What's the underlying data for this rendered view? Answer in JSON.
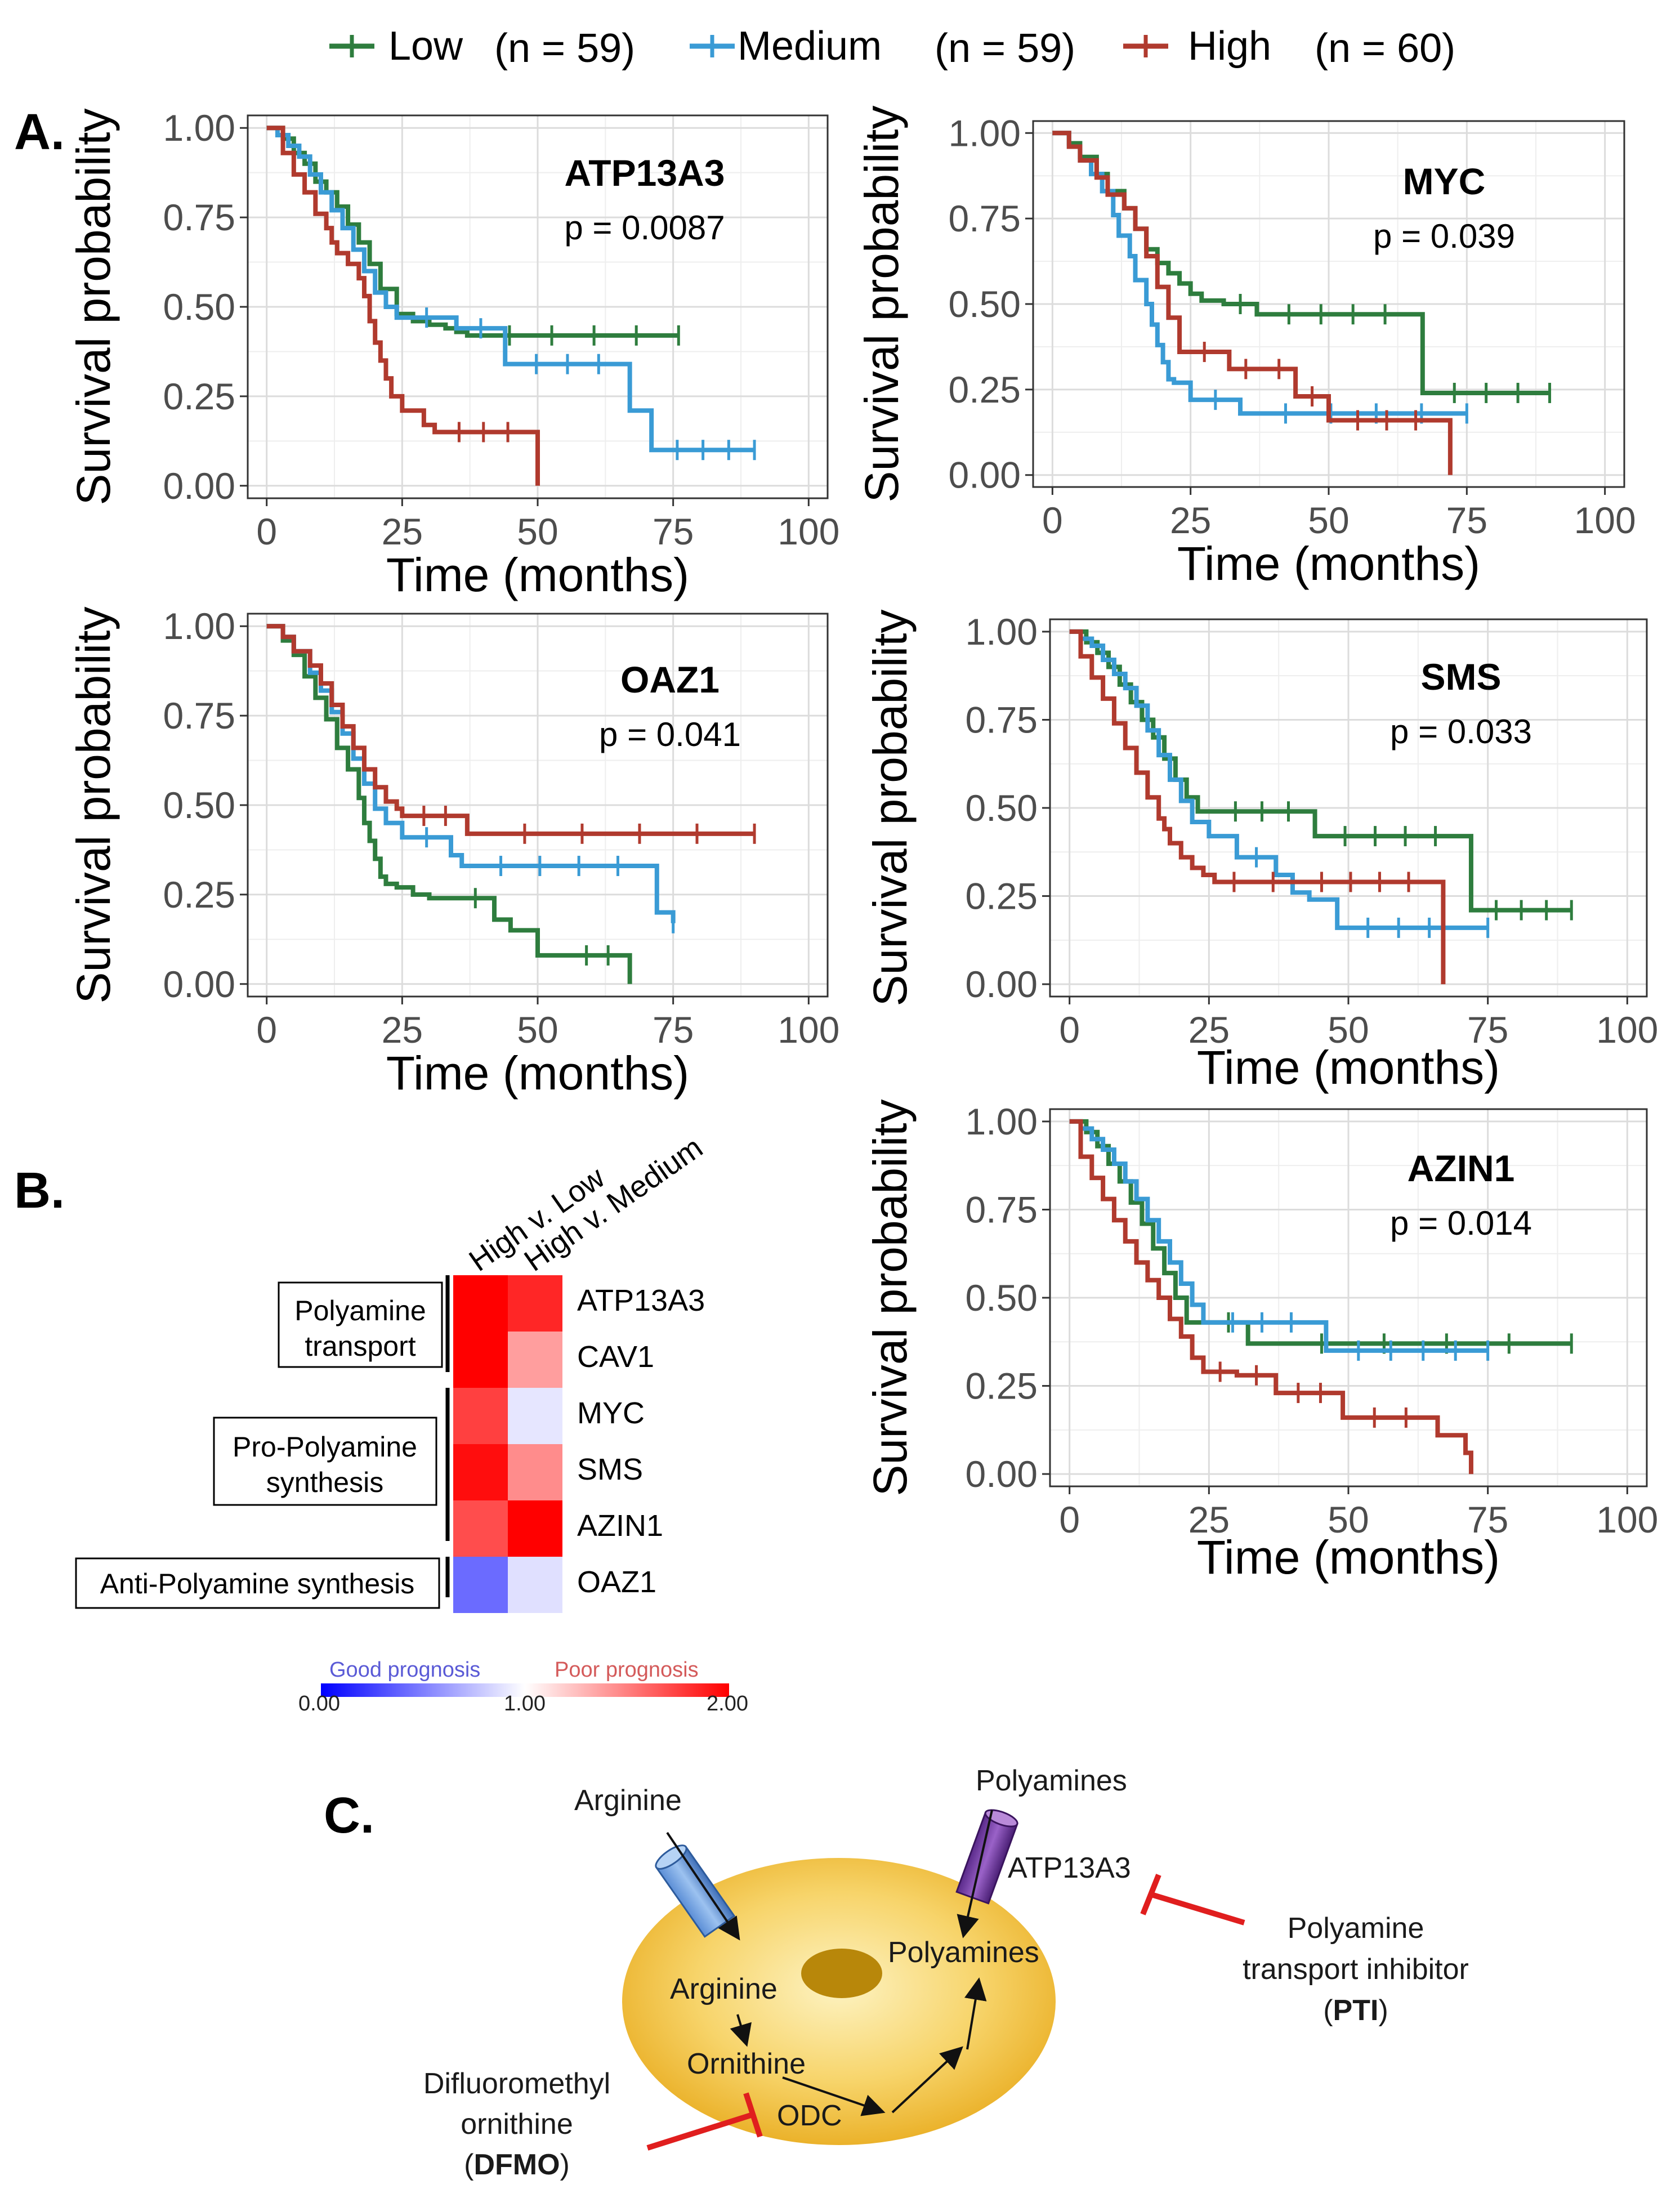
{
  "colors": {
    "low": "#2e7d3e",
    "medium": "#3a9bd5",
    "high": "#b03a2e"
  },
  "legend": {
    "items": [
      {
        "key": "low",
        "label": "Low",
        "n_text": "(n = 59)"
      },
      {
        "key": "medium",
        "label": "Medium",
        "n_text": "(n = 59)"
      },
      {
        "key": "high",
        "label": "High",
        "n_text": "(n = 60)"
      }
    ]
  },
  "panel_letters": {
    "a": "A.",
    "b": "B.",
    "c": "C."
  },
  "chart_data": [
    {
      "type": "line",
      "subtype": "kaplan-meier",
      "title": "ATP13A3",
      "p_value": "p = 0.0087",
      "xlabel": "Time (months)",
      "ylabel": "Survival probability",
      "xlim": [
        0,
        100
      ],
      "ylim": [
        0,
        1
      ],
      "xticks": [
        "0",
        "25",
        "50",
        "75",
        "100"
      ],
      "yticks": [
        "0.00",
        "0.25",
        "0.50",
        "0.75",
        "1.00"
      ],
      "series": [
        {
          "name": "Low",
          "x": [
            0,
            3,
            5,
            7,
            9,
            11,
            13,
            15,
            17,
            19,
            21,
            24,
            27,
            30,
            33,
            35,
            37,
            76
          ],
          "y": [
            1,
            0.97,
            0.93,
            0.9,
            0.85,
            0.82,
            0.78,
            0.73,
            0.68,
            0.62,
            0.55,
            0.48,
            0.46,
            0.45,
            0.44,
            0.43,
            0.42,
            0.42
          ]
        },
        {
          "name": "Medium",
          "x": [
            0,
            2,
            4,
            6,
            8,
            10,
            12,
            14,
            16,
            18,
            20,
            22,
            24,
            35,
            44,
            67,
            71,
            90
          ],
          "y": [
            1,
            0.98,
            0.95,
            0.92,
            0.87,
            0.82,
            0.77,
            0.72,
            0.66,
            0.6,
            0.54,
            0.5,
            0.47,
            0.44,
            0.34,
            0.21,
            0.1,
            0.1
          ]
        },
        {
          "name": "High",
          "x": [
            0,
            3,
            5,
            7,
            9,
            11,
            12,
            13,
            15,
            17,
            18,
            19,
            20,
            21,
            22,
            23,
            25,
            29,
            31,
            49,
            50
          ],
          "y": [
            1,
            0.93,
            0.87,
            0.82,
            0.76,
            0.72,
            0.68,
            0.65,
            0.62,
            0.58,
            0.53,
            0.46,
            0.4,
            0.35,
            0.3,
            0.25,
            0.21,
            0.17,
            0.15,
            0.15,
            0
          ]
        }
      ]
    },
    {
      "type": "line",
      "subtype": "kaplan-meier",
      "title": "MYC",
      "p_value": "p = 0.039",
      "xlabel": "Time (months)",
      "ylabel": "Survival probability",
      "xlim": [
        0,
        100
      ],
      "ylim": [
        0,
        1
      ],
      "xticks": [
        "0",
        "25",
        "50",
        "75",
        "100"
      ],
      "yticks": [
        "0.00",
        "0.25",
        "0.50",
        "0.75",
        "1.00"
      ],
      "series": [
        {
          "name": "Low",
          "x": [
            0,
            3,
            5,
            8,
            10,
            13,
            15,
            17,
            19,
            21,
            23,
            25,
            27,
            31,
            37,
            66,
            67,
            90
          ],
          "y": [
            1,
            0.97,
            0.93,
            0.88,
            0.83,
            0.78,
            0.72,
            0.66,
            0.62,
            0.59,
            0.56,
            0.53,
            0.51,
            0.5,
            0.47,
            0.47,
            0.24,
            0.24
          ]
        },
        {
          "name": "Medium",
          "x": [
            0,
            3,
            5,
            7,
            9,
            11,
            12,
            14,
            15,
            17,
            18,
            19,
            20,
            21,
            22,
            25,
            34,
            75
          ],
          "y": [
            1,
            0.96,
            0.92,
            0.88,
            0.83,
            0.76,
            0.7,
            0.64,
            0.57,
            0.5,
            0.44,
            0.38,
            0.33,
            0.28,
            0.27,
            0.22,
            0.18,
            0.18
          ]
        },
        {
          "name": "High",
          "x": [
            0,
            3,
            5,
            8,
            10,
            13,
            15,
            17,
            19,
            21,
            23,
            32,
            38,
            44,
            50,
            71,
            72
          ],
          "y": [
            1,
            0.96,
            0.92,
            0.87,
            0.82,
            0.78,
            0.72,
            0.64,
            0.55,
            0.46,
            0.36,
            0.31,
            0.31,
            0.23,
            0.16,
            0.16,
            0
          ]
        }
      ]
    },
    {
      "type": "line",
      "subtype": "kaplan-meier",
      "title": "OAZ1",
      "p_value": "p = 0.041",
      "xlabel": "Time (months)",
      "ylabel": "Survival probability",
      "xlim": [
        0,
        100
      ],
      "ylim": [
        0,
        1
      ],
      "xticks": [
        "0",
        "25",
        "50",
        "75",
        "100"
      ],
      "yticks": [
        "0.00",
        "0.25",
        "0.50",
        "0.75",
        "1.00"
      ],
      "series": [
        {
          "name": "Low",
          "x": [
            0,
            3,
            5,
            7,
            9,
            11,
            13,
            15,
            17,
            18,
            19,
            20,
            21,
            22,
            24,
            27,
            30,
            35,
            42,
            45,
            50,
            55,
            67
          ],
          "y": [
            1,
            0.96,
            0.92,
            0.86,
            0.8,
            0.74,
            0.66,
            0.6,
            0.52,
            0.45,
            0.4,
            0.35,
            0.3,
            0.28,
            0.27,
            0.25,
            0.24,
            0.24,
            0.18,
            0.15,
            0.08,
            0.08,
            0
          ]
        },
        {
          "name": "Medium",
          "x": [
            0,
            3,
            5,
            8,
            10,
            12,
            14,
            16,
            18,
            20,
            22,
            25,
            34,
            36,
            72,
            75
          ],
          "y": [
            1,
            0.97,
            0.93,
            0.87,
            0.82,
            0.76,
            0.7,
            0.63,
            0.56,
            0.49,
            0.45,
            0.41,
            0.36,
            0.33,
            0.2,
            0.17
          ]
        },
        {
          "name": "High",
          "x": [
            0,
            3,
            5,
            8,
            10,
            12,
            14,
            16,
            18,
            20,
            22,
            24,
            25,
            37,
            90
          ],
          "y": [
            1,
            0.97,
            0.93,
            0.89,
            0.84,
            0.78,
            0.72,
            0.66,
            0.6,
            0.55,
            0.51,
            0.49,
            0.47,
            0.42,
            0.42
          ]
        }
      ]
    },
    {
      "type": "line",
      "subtype": "kaplan-meier",
      "title": "SMS",
      "p_value": "p = 0.033",
      "xlabel": "Time (months)",
      "ylabel": "Survival probability",
      "xlim": [
        0,
        100
      ],
      "ylim": [
        0,
        1
      ],
      "xticks": [
        "0",
        "25",
        "50",
        "75",
        "100"
      ],
      "yticks": [
        "0.00",
        "0.25",
        "0.50",
        "0.75",
        "1.00"
      ],
      "series": [
        {
          "name": "Low",
          "x": [
            0,
            3,
            5,
            7,
            9,
            11,
            13,
            15,
            17,
            19,
            21,
            23,
            25,
            44,
            71,
            72,
            90
          ],
          "y": [
            1,
            0.97,
            0.94,
            0.9,
            0.85,
            0.8,
            0.75,
            0.7,
            0.64,
            0.58,
            0.53,
            0.49,
            0.49,
            0.42,
            0.42,
            0.21,
            0.21
          ]
        },
        {
          "name": "Medium",
          "x": [
            0,
            2,
            4,
            6,
            8,
            10,
            12,
            14,
            16,
            18,
            20,
            22,
            25,
            30,
            37,
            40,
            43,
            48,
            70,
            75
          ],
          "y": [
            1,
            0.98,
            0.96,
            0.92,
            0.88,
            0.84,
            0.79,
            0.72,
            0.65,
            0.58,
            0.52,
            0.46,
            0.42,
            0.36,
            0.31,
            0.26,
            0.24,
            0.16,
            0.16,
            0.16
          ]
        },
        {
          "name": "High",
          "x": [
            0,
            2,
            4,
            6,
            8,
            10,
            12,
            14,
            16,
            17,
            18,
            20,
            22,
            24,
            26,
            33,
            40,
            66,
            67
          ],
          "y": [
            1,
            0.93,
            0.87,
            0.81,
            0.74,
            0.67,
            0.6,
            0.53,
            0.47,
            0.44,
            0.4,
            0.36,
            0.33,
            0.31,
            0.29,
            0.29,
            0.29,
            0.29,
            0
          ]
        }
      ]
    },
    {
      "type": "line",
      "subtype": "kaplan-meier",
      "title": "AZIN1",
      "p_value": "p = 0.014",
      "xlabel": "Time (months)",
      "ylabel": "Survival probability",
      "xlim": [
        0,
        100
      ],
      "ylim": [
        0,
        1
      ],
      "xticks": [
        "0",
        "25",
        "50",
        "75",
        "100"
      ],
      "yticks": [
        "0.00",
        "0.25",
        "0.50",
        "0.75",
        "1.00"
      ],
      "series": [
        {
          "name": "Low",
          "x": [
            0,
            3,
            5,
            7,
            9,
            11,
            13,
            15,
            17,
            19,
            21,
            25,
            32,
            34,
            90
          ],
          "y": [
            1,
            0.97,
            0.93,
            0.88,
            0.83,
            0.77,
            0.71,
            0.64,
            0.57,
            0.5,
            0.43,
            0.43,
            0.37,
            0.37,
            0.37
          ]
        },
        {
          "name": "Medium",
          "x": [
            0,
            2,
            4,
            6,
            8,
            10,
            12,
            14,
            16,
            18,
            20,
            22,
            24,
            45,
            46,
            75
          ],
          "y": [
            1,
            0.98,
            0.95,
            0.92,
            0.88,
            0.83,
            0.78,
            0.72,
            0.66,
            0.6,
            0.54,
            0.48,
            0.43,
            0.43,
            0.35,
            0.35
          ]
        },
        {
          "name": "High",
          "x": [
            0,
            2,
            4,
            6,
            8,
            10,
            12,
            14,
            16,
            18,
            20,
            22,
            24,
            30,
            37,
            49,
            66,
            71,
            72
          ],
          "y": [
            1,
            0.9,
            0.84,
            0.78,
            0.72,
            0.66,
            0.6,
            0.55,
            0.5,
            0.44,
            0.39,
            0.33,
            0.29,
            0.28,
            0.23,
            0.16,
            0.11,
            0.06,
            0
          ]
        }
      ]
    },
    {
      "type": "heatmap",
      "columns": [
        "High v. Low",
        "High v. Medium"
      ],
      "rows": [
        "ATP13A3",
        "CAV1",
        "MYC",
        "SMS",
        "AZIN1",
        "OAZ1"
      ],
      "values": [
        [
          2.0,
          1.85
        ],
        [
          2.0,
          1.38
        ],
        [
          1.75,
          0.9
        ],
        [
          1.95,
          1.45
        ],
        [
          1.7,
          2.0
        ],
        [
          0.42,
          0.88
        ]
      ],
      "range": [
        0,
        2
      ],
      "colorbar": {
        "min_label": "0.00",
        "mid_label": "1.00",
        "max_label": "2.00",
        "good_label": "Good prognosis",
        "poor_label": "Poor prognosis",
        "low_color": "#0000ff",
        "mid_color": "#ffffff",
        "high_color": "#ff0000"
      },
      "groups": [
        {
          "label_lines": [
            "Polyamine",
            "transport"
          ],
          "rows": [
            "ATP13A3",
            "CAV1"
          ]
        },
        {
          "label_lines": [
            "Pro-Polyamine",
            "synthesis"
          ],
          "rows": [
            "MYC",
            "SMS",
            "AZIN1"
          ]
        },
        {
          "label_lines": [
            "Anti-Polyamine synthesis"
          ],
          "rows": [
            "OAZ1"
          ]
        }
      ]
    }
  ],
  "diagram": {
    "arginine_outside": "Arginine",
    "polyamines_outside": "Polyamines",
    "transporter": "ATP13A3",
    "polyamines_inside": "Polyamines",
    "arginine_inside": "Arginine",
    "ornithine": "Ornithine",
    "odc": "ODC",
    "pti_lines": [
      "Polyamine",
      "transport inhibitor"
    ],
    "pti_abbrev": "PTI",
    "dfmo_lines": [
      "Difluoromethyl",
      "ornithine"
    ],
    "dfmo_abbrev": "DFMO",
    "inhibitor_color": "#e01e1e"
  }
}
